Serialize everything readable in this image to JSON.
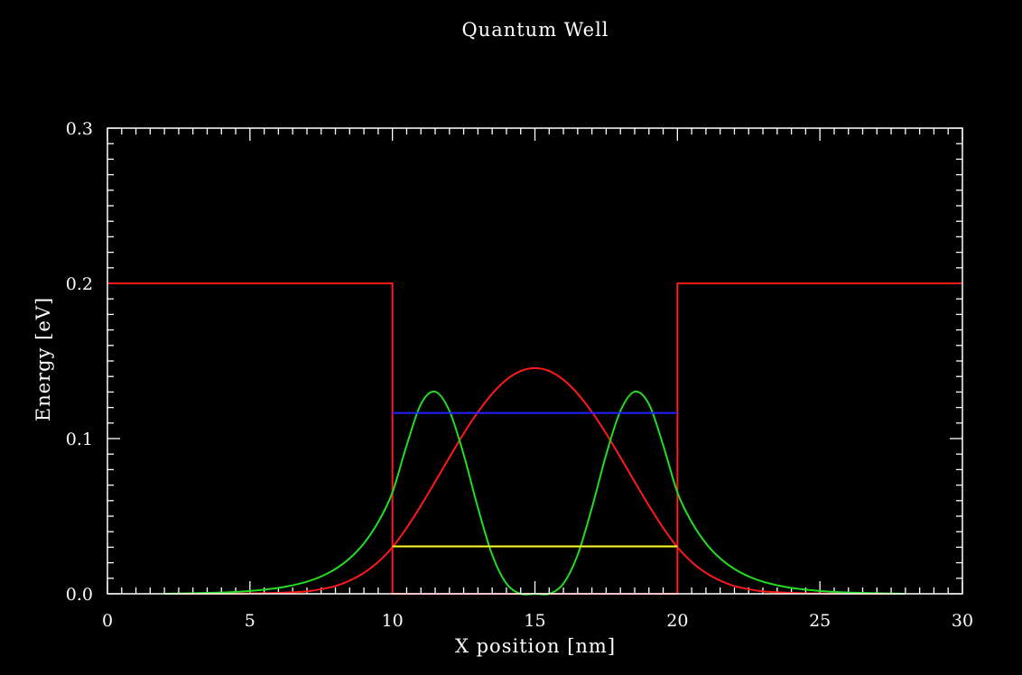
{
  "chart_data": {
    "type": "line",
    "title": "Quantum Well",
    "xlabel": "X position [nm]",
    "ylabel": "Energy [eV]",
    "xlim": [
      0,
      30
    ],
    "ylim": [
      0,
      0.3
    ],
    "x_ticks": [
      0,
      5,
      10,
      15,
      20,
      25,
      30
    ],
    "y_ticks": [
      0.0,
      0.1,
      0.2,
      0.3
    ],
    "x_tick_labels": [
      "0",
      "5",
      "10",
      "15",
      "20",
      "25",
      "30"
    ],
    "y_tick_labels": [
      "0.0",
      "0.1",
      "0.2",
      "0.3"
    ],
    "grid": false,
    "legend": "none",
    "background": "#000000",
    "foreground": "#ffffff",
    "series": [
      {
        "color": "#ff1a1a",
        "style": "step",
        "x": [
          0,
          10,
          10,
          20,
          20,
          30
        ],
        "y": [
          0.2,
          0.2,
          0.0,
          0.0,
          0.2,
          0.2
        ]
      },
      {
        "color": "#ff1a1a",
        "x": [
          2,
          5,
          6,
          7,
          7.5,
          8,
          8.5,
          9,
          9.5,
          10,
          10.5,
          11,
          11.5,
          12,
          12.5,
          13,
          13.5,
          14,
          14.5,
          15,
          15.5,
          16,
          16.5,
          17,
          17.5,
          18,
          18.5,
          19,
          19.5,
          20,
          20.5,
          21,
          21.5,
          22,
          22.5,
          23,
          24,
          25,
          28
        ],
        "y": [
          0.0,
          0.0002,
          0.0006,
          0.0015,
          0.003,
          0.005,
          0.0085,
          0.0135,
          0.0205,
          0.03,
          0.0425,
          0.0568,
          0.0722,
          0.0879,
          0.1032,
          0.1171,
          0.1289,
          0.1379,
          0.1435,
          0.1454,
          0.1435,
          0.1379,
          0.1289,
          0.1171,
          0.1032,
          0.0879,
          0.0722,
          0.0568,
          0.0425,
          0.03,
          0.0205,
          0.0135,
          0.0085,
          0.005,
          0.003,
          0.0015,
          0.0006,
          0.0002,
          0.0
        ]
      },
      {
        "color": "#22dd22",
        "x": [
          2,
          4,
          5,
          6,
          6.5,
          7,
          7.5,
          8,
          8.5,
          9,
          9.5,
          10,
          10.5,
          11,
          11.5,
          12,
          12.5,
          13,
          13.5,
          14,
          14.5,
          15,
          15.5,
          16,
          16.5,
          17,
          17.5,
          18,
          18.5,
          19,
          19.5,
          20,
          20.5,
          21,
          21.5,
          22,
          22.5,
          23,
          23.5,
          24,
          25,
          26,
          28
        ],
        "y": [
          0.0,
          0.0008,
          0.0018,
          0.0038,
          0.0055,
          0.0078,
          0.0112,
          0.016,
          0.0228,
          0.0325,
          0.0462,
          0.0653,
          0.0957,
          0.1222,
          0.1302,
          0.1178,
          0.0897,
          0.0554,
          0.0251,
          0.0066,
          0.0,
          0.0,
          0.0,
          0.0066,
          0.0251,
          0.0554,
          0.0897,
          0.1178,
          0.1302,
          0.1222,
          0.0957,
          0.0653,
          0.0462,
          0.0325,
          0.0228,
          0.016,
          0.0112,
          0.0078,
          0.0055,
          0.0038,
          0.0018,
          0.0008,
          0.0
        ]
      },
      {
        "color": "#ffff22",
        "x": [
          10,
          20
        ],
        "y": [
          0.0305,
          0.0305
        ]
      },
      {
        "color": "#2222ff",
        "x": [
          10,
          20
        ],
        "y": [
          0.1165,
          0.1165
        ]
      }
    ]
  }
}
